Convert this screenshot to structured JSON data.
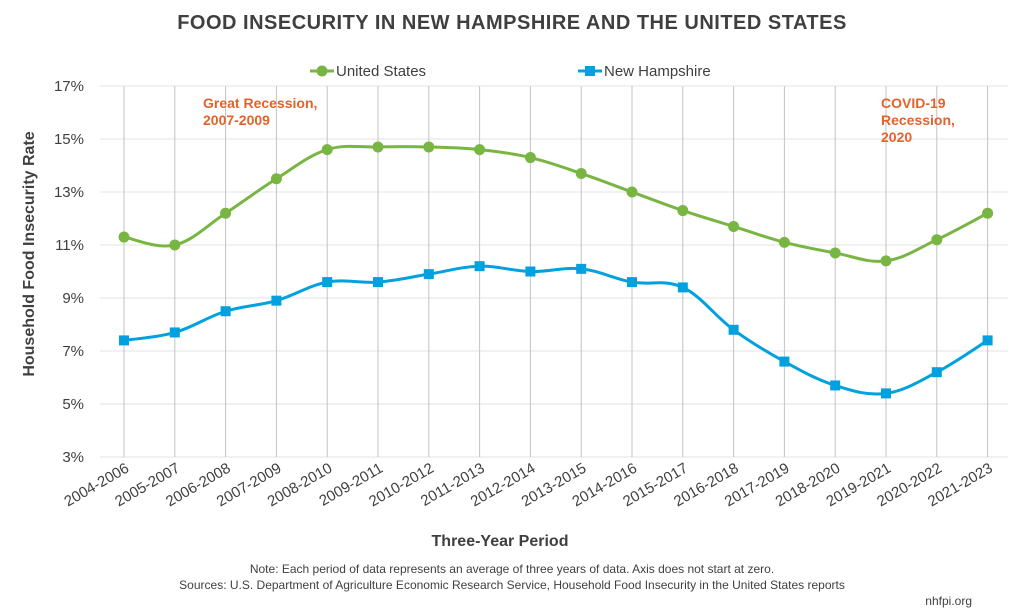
{
  "chart_data": {
    "type": "line",
    "title": "FOOD INSECURITY IN NEW HAMPSHIRE AND THE UNITED STATES",
    "xlabel": "Three-Year Period",
    "ylabel": "Household Food Insecurity Rate",
    "ylim": [
      3,
      17
    ],
    "yticks": [
      3,
      5,
      7,
      9,
      11,
      13,
      15,
      17
    ],
    "ytick_labels": [
      "3%",
      "5%",
      "7%",
      "9%",
      "11%",
      "13%",
      "15%",
      "17%"
    ],
    "categories": [
      "2004-2006",
      "2005-2007",
      "2006-2008",
      "2007-2009",
      "2008-2010",
      "2009-2011",
      "2010-2012",
      "2011-2013",
      "2012-2014",
      "2013-2015",
      "2014-2016",
      "2015-2017",
      "2016-2018",
      "2017-2019",
      "2018-2020",
      "2019-2021",
      "2020-2022",
      "2021-2023"
    ],
    "series": [
      {
        "name": "United States",
        "color": "#79b543",
        "marker": "circle",
        "values": [
          11.3,
          11.0,
          12.2,
          13.5,
          14.6,
          14.7,
          14.7,
          14.6,
          14.3,
          13.7,
          13.0,
          12.3,
          11.7,
          11.1,
          10.7,
          10.4,
          11.2,
          12.2
        ]
      },
      {
        "name": "New Hampshire",
        "color": "#00a1de",
        "marker": "square",
        "values": [
          7.4,
          7.7,
          8.5,
          8.9,
          9.6,
          9.6,
          9.9,
          10.2,
          10.0,
          10.1,
          9.6,
          9.4,
          7.8,
          6.6,
          5.7,
          5.4,
          6.2,
          7.4
        ]
      }
    ],
    "legend_position": "top-center",
    "grid": "vertical",
    "annotations": [
      {
        "lines": [
          "Great Recession,",
          "2007-2009"
        ],
        "color": "#e2632c",
        "anchor": "2007-2009"
      },
      {
        "lines": [
          "COVID-19",
          "Recession,",
          "2020"
        ],
        "color": "#e2632c",
        "anchor": "2020-2022"
      }
    ]
  },
  "note": "Note: Each period of data represents an average of three years of data. Axis does not start at zero.",
  "sources": "Sources: U.S. Department of Agriculture Economic Research Service, Household Food Insecurity in the United States reports",
  "credit": "nhfpi.org"
}
